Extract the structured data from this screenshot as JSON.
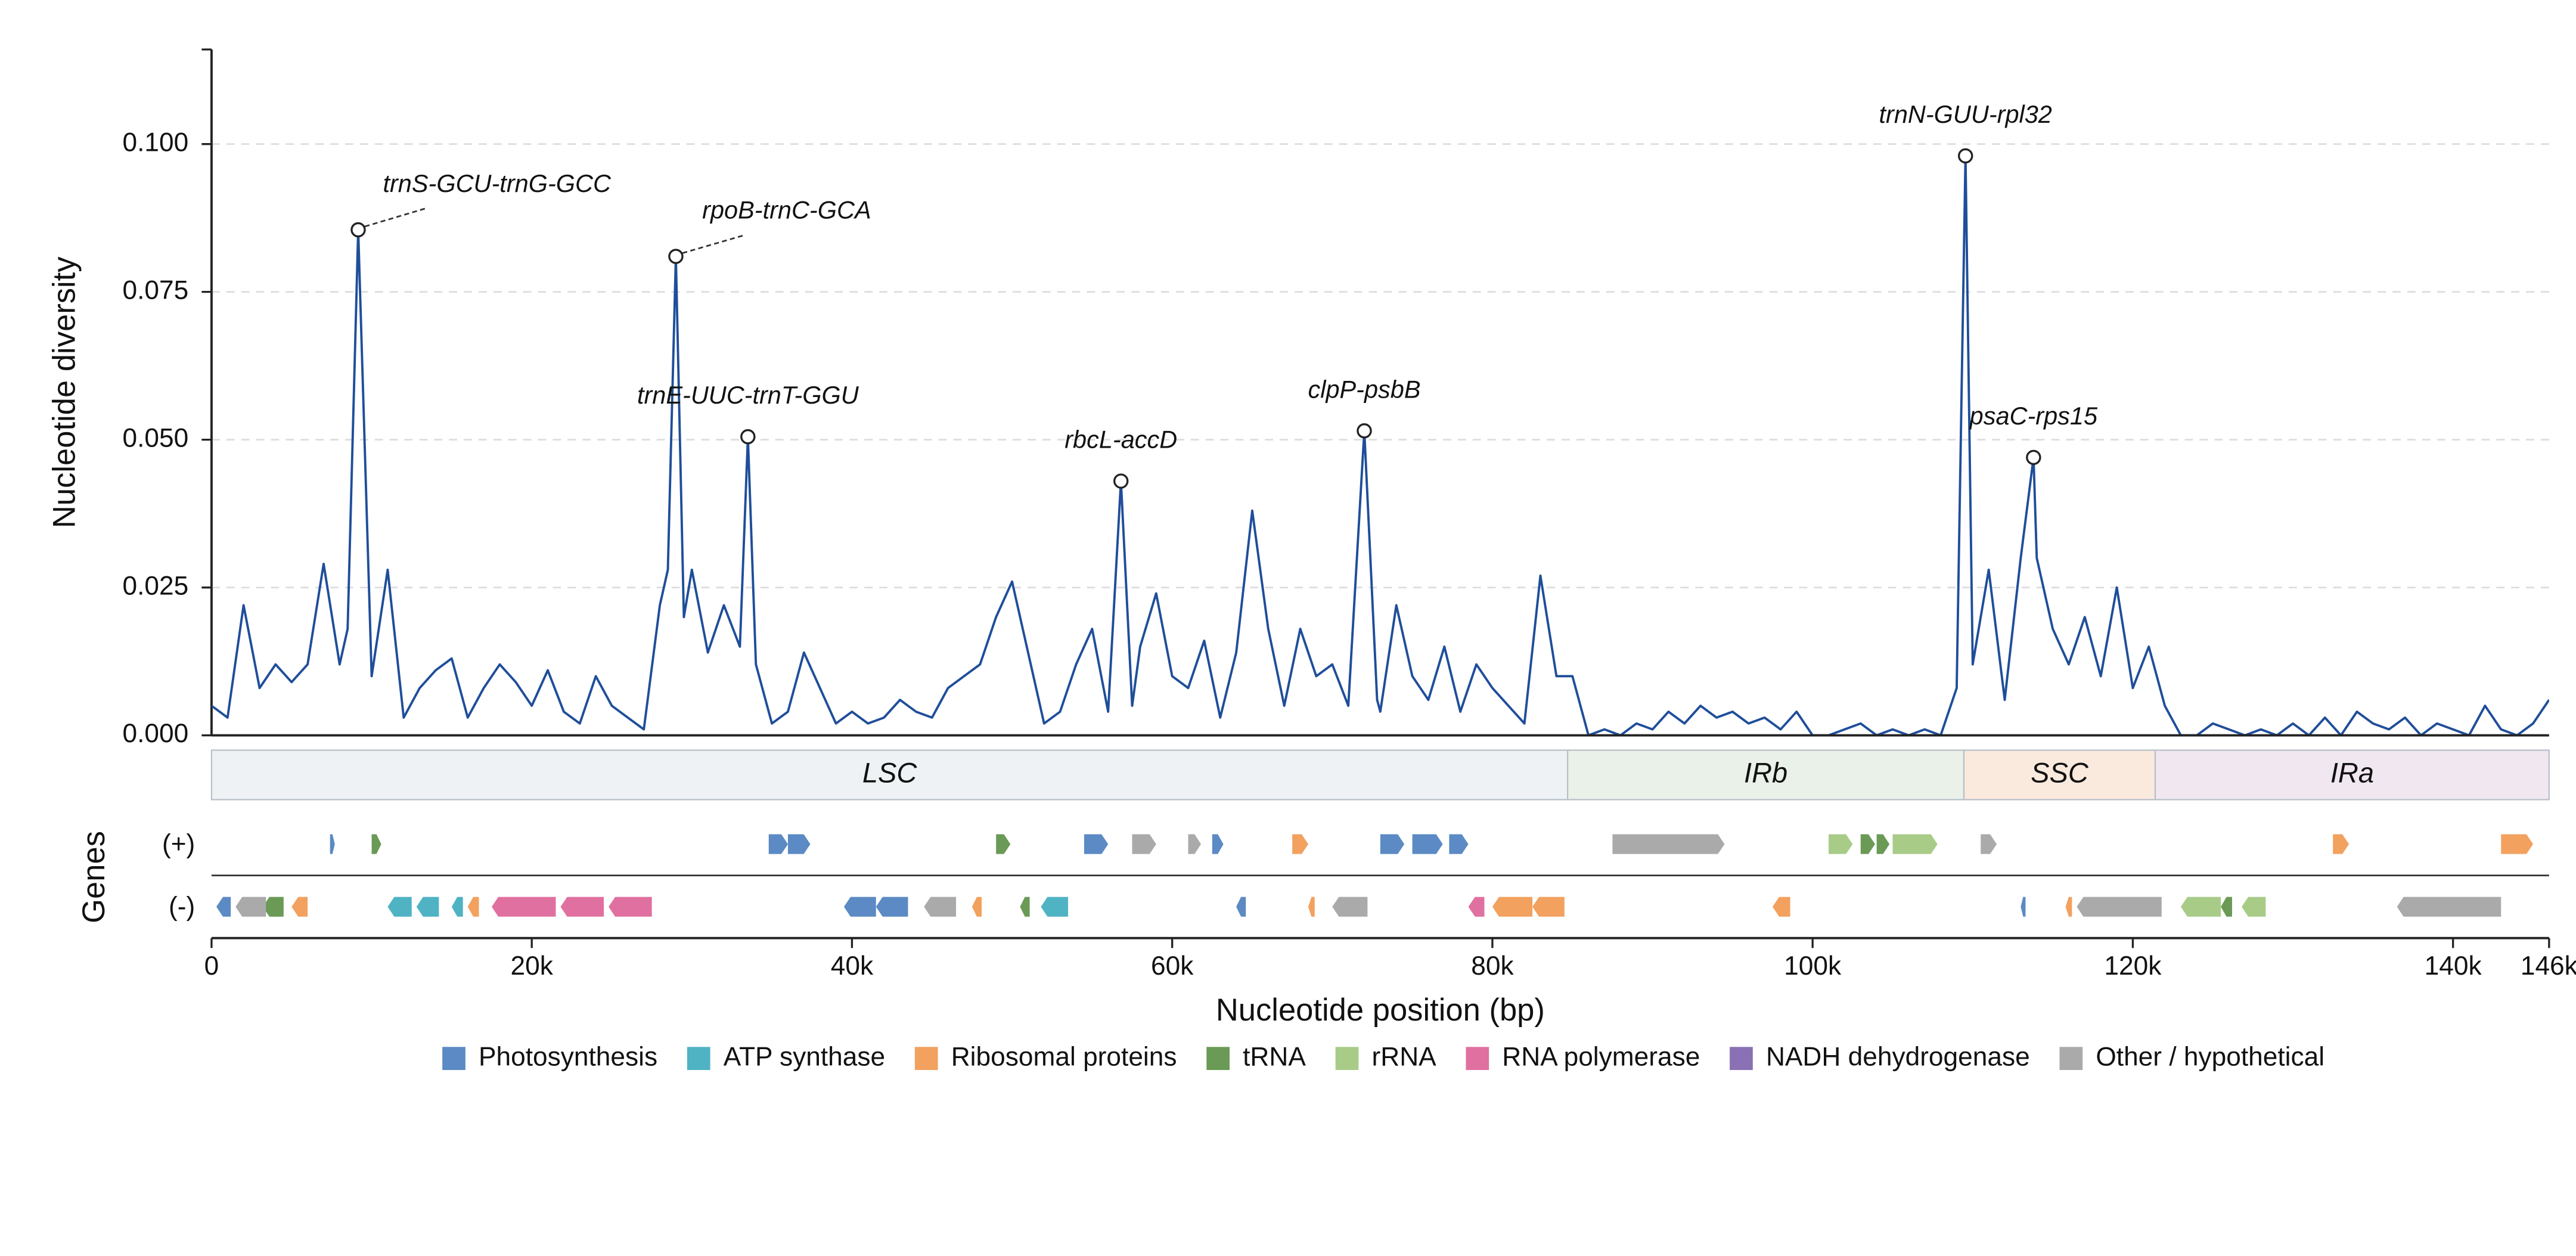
{
  "chart_data": {
    "type": "line",
    "y_label": "Nucleotide diversity",
    "x_label": "Nucleotide position (bp)",
    "genes_label": "Genes",
    "strand_labels": [
      "(+)",
      "(-)"
    ],
    "color": "#1f4e9a",
    "grid": true,
    "ylim": [
      0,
      0.116
    ],
    "yticks": [
      {
        "value": 0,
        "label": "0.000"
      },
      {
        "value": 0.025,
        "label": "0.025"
      },
      {
        "value": 0.05,
        "label": "0.050"
      },
      {
        "value": 0.075,
        "label": "0.075"
      },
      {
        "value": 0.1,
        "label": "0.100"
      }
    ],
    "xlim": [
      0,
      146000
    ],
    "xticks": [
      0,
      {
        "value": 20000,
        "label": "20k"
      },
      {
        "value": 40000,
        "label": "40k"
      },
      {
        "value": 60000,
        "label": "60k"
      },
      {
        "value": 80000,
        "label": "80k"
      },
      {
        "value": 100000,
        "label": "100k"
      },
      {
        "value": 120000,
        "label": "120k"
      },
      {
        "value": 140000,
        "label": "140k"
      },
      {
        "value": 146000,
        "label": "146k"
      }
    ],
    "x": [
      0,
      1000,
      2000,
      3000,
      4000,
      5000,
      6000,
      7000,
      8000,
      8500,
      9160,
      10000,
      11000,
      12000,
      13000,
      14000,
      15000,
      16000,
      17000,
      18000,
      19000,
      20000,
      21000,
      22000,
      23000,
      24000,
      25000,
      26000,
      27000,
      28000,
      28500,
      29000,
      29500,
      30000,
      31000,
      32000,
      33000,
      33500,
      34000,
      35000,
      36000,
      37000,
      38000,
      39000,
      40000,
      41000,
      42000,
      43000,
      44000,
      45000,
      46000,
      47000,
      48000,
      49000,
      50000,
      51000,
      52000,
      53000,
      54000,
      55000,
      56000,
      56800,
      57500,
      58000,
      59000,
      60000,
      61000,
      62000,
      63000,
      64000,
      65000,
      66000,
      67000,
      68000,
      69000,
      70000,
      71000,
      72000,
      72800,
      73000,
      74000,
      75000,
      76000,
      77000,
      78000,
      79000,
      80000,
      81000,
      82000,
      83000,
      84000,
      85000,
      86000,
      87000,
      88000,
      89000,
      90000,
      91000,
      92000,
      93000,
      94000,
      95000,
      96000,
      97000,
      98000,
      99000,
      100000,
      101000,
      102000,
      103000,
      104000,
      105000,
      106000,
      107000,
      108000,
      109000,
      109550,
      110000,
      111000,
      112000,
      113000,
      113800,
      114000,
      115000,
      116000,
      117000,
      118000,
      119000,
      120000,
      121000,
      122000,
      123000,
      124000,
      125000,
      126000,
      127000,
      128000,
      129000,
      130000,
      131000,
      132000,
      133000,
      134000,
      135000,
      136000,
      137000,
      138000,
      139000,
      140000,
      141000,
      142000,
      143000,
      144000,
      145000,
      146000
    ],
    "values": [
      0.005,
      0.003,
      0.022,
      0.008,
      0.012,
      0.009,
      0.012,
      0.029,
      0.012,
      0.018,
      0.0855,
      0.01,
      0.028,
      0.003,
      0.008,
      0.011,
      0.013,
      0.003,
      0.008,
      0.012,
      0.009,
      0.005,
      0.011,
      0.004,
      0.002,
      0.01,
      0.005,
      0.003,
      0.001,
      0.022,
      0.028,
      0.081,
      0.02,
      0.028,
      0.014,
      0.022,
      0.015,
      0.0505,
      0.012,
      0.002,
      0.004,
      0.014,
      0.008,
      0.002,
      0.004,
      0.002,
      0.003,
      0.006,
      0.004,
      0.003,
      0.008,
      0.01,
      0.012,
      0.02,
      0.026,
      0.014,
      0.002,
      0.004,
      0.012,
      0.018,
      0.004,
      0.043,
      0.005,
      0.015,
      0.024,
      0.01,
      0.008,
      0.016,
      0.003,
      0.014,
      0.038,
      0.018,
      0.005,
      0.018,
      0.01,
      0.012,
      0.005,
      0.0515,
      0.006,
      0.004,
      0.022,
      0.01,
      0.006,
      0.015,
      0.004,
      0.012,
      0.008,
      0.005,
      0.002,
      0.027,
      0.01,
      0.01,
      0,
      0.001,
      0,
      0.002,
      0.001,
      0.004,
      0.002,
      0.005,
      0.003,
      0.004,
      0.002,
      0.003,
      0.001,
      0.004,
      0,
      0,
      0.001,
      0.002,
      0,
      0.001,
      0,
      0.001,
      0,
      0.008,
      0.098,
      0.012,
      0.028,
      0.006,
      0.03,
      0.047,
      0.03,
      0.018,
      0.012,
      0.02,
      0.01,
      0.025,
      0.008,
      0.015,
      0.005,
      0,
      0,
      0.002,
      0.001,
      0,
      0.001,
      0,
      0.002,
      0,
      0.003,
      0,
      0.004,
      0.002,
      0.001,
      0.003,
      0,
      0.002,
      0.001,
      0,
      0.005,
      0.001,
      0,
      0.002,
      0.006
    ],
    "annotations": [
      {
        "text": "trnS-GCU-trnG-GCC",
        "x": 9160,
        "y": 0.0855
      },
      {
        "text": "rpoB-trnC-GCA",
        "x": 29000,
        "y": 0.081
      },
      {
        "text": "trnE-UUC-trnT-GGU",
        "x": 33500,
        "y": 0.0505
      },
      {
        "text": "rbcL-accD",
        "x": 56800,
        "y": 0.043
      },
      {
        "text": "clpP-psbB",
        "x": 72000,
        "y": 0.0515
      },
      {
        "text": "trnN-GUU-rpl32",
        "x": 109550,
        "y": 0.098
      },
      {
        "text": "psaC-rps15",
        "x": 113800,
        "y": 0.047
      }
    ],
    "regions": [
      {
        "name": "LSC",
        "start": 0,
        "end": 84700,
        "color": "#eef2f5"
      },
      {
        "name": "IRb",
        "start": 84700,
        "end": 109450,
        "color": "#eaf1e8"
      },
      {
        "name": "SSC",
        "start": 109450,
        "end": 121400,
        "color": "#fae9dd"
      },
      {
        "name": "IRa",
        "start": 121400,
        "end": 146000,
        "color": "#f1e7f1"
      }
    ],
    "gene_groups": [
      {
        "name": "Photosynthesis",
        "color": "#5b8ac4",
        "plus": [
          [
            7400,
            7700
          ],
          [
            34800,
            36000
          ],
          [
            36000,
            37400
          ],
          [
            54500,
            56000
          ],
          [
            62500,
            63200
          ],
          [
            73000,
            74500
          ],
          [
            75000,
            76900
          ],
          [
            77300,
            78500
          ]
        ],
        "minus": [
          [
            300,
            1200
          ],
          [
            39500,
            41500
          ],
          [
            41500,
            43500
          ],
          [
            64000,
            64600
          ],
          [
            113000,
            113300
          ]
        ]
      },
      {
        "name": "ATP synthase",
        "color": "#4fb3c4",
        "plus": [],
        "minus": [
          [
            11000,
            12500
          ],
          [
            12800,
            14200
          ],
          [
            15000,
            15700
          ],
          [
            51800,
            53500
          ]
        ]
      },
      {
        "name": "Ribosomal proteins",
        "color": "#f2a15f",
        "plus": [
          [
            67500,
            68500
          ],
          [
            132500,
            133500
          ],
          [
            143000,
            145000
          ]
        ],
        "minus": [
          [
            5000,
            6000
          ],
          [
            16000,
            16700
          ],
          [
            47500,
            48100
          ],
          [
            68500,
            68900
          ],
          [
            80000,
            82500
          ],
          [
            82500,
            84500
          ],
          [
            97500,
            98600
          ],
          [
            115800,
            116200
          ]
        ]
      },
      {
        "name": "tRNA",
        "color": "#6a9a56",
        "plus": [
          [
            10000,
            10600
          ],
          [
            49000,
            49900
          ],
          [
            103000,
            103900
          ],
          [
            104000,
            104800
          ]
        ],
        "minus": [
          [
            3200,
            4500
          ],
          [
            50500,
            51100
          ],
          [
            125500,
            126200
          ]
        ]
      },
      {
        "name": "rRNA",
        "color": "#a8cc88",
        "plus": [
          [
            101000,
            102500
          ],
          [
            105000,
            107800
          ]
        ],
        "minus": [
          [
            123000,
            125500
          ],
          [
            126800,
            128300
          ]
        ]
      },
      {
        "name": "RNA polymerase",
        "color": "#e070a0",
        "plus": [],
        "minus": [
          [
            17500,
            21500
          ],
          [
            21800,
            24500
          ],
          [
            24800,
            27500
          ],
          [
            78500,
            79500
          ]
        ]
      },
      {
        "name": "NADH dehydrogenase",
        "color": "#8a70b4",
        "plus": [],
        "minus": []
      },
      {
        "name": "Other / hypothetical",
        "color": "#aaaaaa",
        "plus": [
          [
            57500,
            59000
          ],
          [
            61000,
            61800
          ],
          [
            87500,
            94500
          ],
          [
            110500,
            111500
          ]
        ],
        "minus": [
          [
            1500,
            3400
          ],
          [
            44500,
            46500
          ],
          [
            70000,
            72200
          ],
          [
            116500,
            121800
          ],
          [
            136500,
            143000
          ]
        ]
      }
    ]
  }
}
